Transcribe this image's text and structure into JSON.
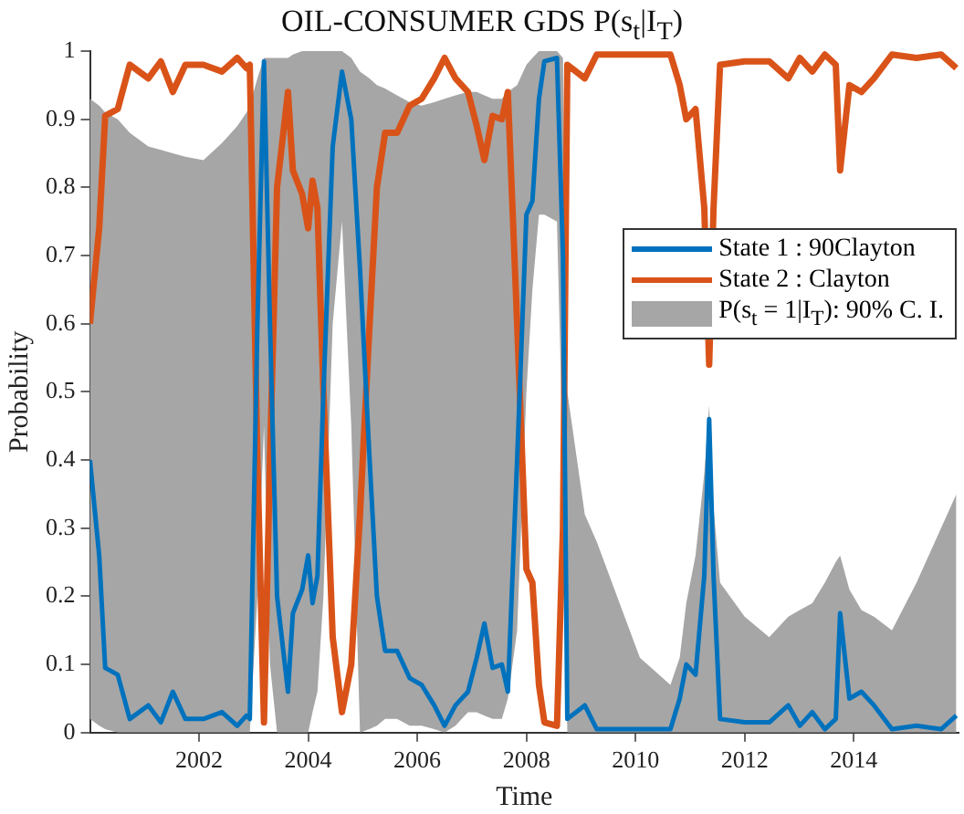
{
  "chart_data": {
    "type": "line",
    "title": "OIL-CONSUMER GDS P(s$_{t}$|I$_{T}$)",
    "xlabel": "Time",
    "ylabel": "Probability",
    "xlim": [
      2000,
      2015.92
    ],
    "xticks": [
      2002,
      2004,
      2006,
      2008,
      2010,
      2012,
      2014
    ],
    "ylim": [
      0,
      1
    ],
    "yticks": [
      0,
      0.1,
      0.2,
      0.3,
      0.4,
      0.5,
      0.6,
      0.7,
      0.8,
      0.9,
      1
    ],
    "grid": false,
    "legend": "right",
    "marker": "none",
    "line_style": "solid",
    "annotations": [
      "P(s$_{t}$ = 1|I$_{T}$): 90% C. I."
    ],
    "x": [
      2000.0,
      2000.17,
      2000.28,
      2000.51,
      2000.73,
      2001.07,
      2001.3,
      2001.52,
      2001.75,
      2002.08,
      2002.42,
      2002.7,
      2002.87,
      2002.93,
      2003.07,
      2003.19,
      2003.3,
      2003.43,
      2003.63,
      2003.72,
      2003.89,
      2004.0,
      2004.08,
      2004.17,
      2004.28,
      2004.45,
      2004.62,
      2004.79,
      2004.95,
      2005.12,
      2005.26,
      2005.41,
      2005.63,
      2005.86,
      2006.08,
      2006.31,
      2006.5,
      2006.7,
      2006.93,
      2007.09,
      2007.23,
      2007.38,
      2007.55,
      2007.66,
      2007.83,
      2008.0,
      2008.11,
      2008.23,
      2008.33,
      2008.56,
      2008.67,
      2008.75,
      2009.07,
      2009.29,
      2010.08,
      2010.64,
      2010.81,
      2010.93,
      2011.1,
      2011.26,
      2011.35,
      2011.43,
      2011.55,
      2012.0,
      2012.45,
      2012.8,
      2013.01,
      2013.24,
      2013.47,
      2013.67,
      2013.75,
      2013.92,
      2014.14,
      2014.37,
      2014.7,
      2015.15,
      2015.6,
      2015.88
    ],
    "series": [
      {
        "name": "State 1 : 90Clayton",
        "color": "#0072bd",
        "values": [
          0.4,
          0.26,
          0.095,
          0.085,
          0.02,
          0.04,
          0.015,
          0.06,
          0.02,
          0.02,
          0.03,
          0.01,
          0.025,
          0.02,
          0.6,
          0.985,
          0.6,
          0.2,
          0.06,
          0.175,
          0.21,
          0.26,
          0.19,
          0.23,
          0.5,
          0.86,
          0.97,
          0.9,
          0.68,
          0.41,
          0.2,
          0.12,
          0.12,
          0.08,
          0.07,
          0.04,
          0.01,
          0.04,
          0.06,
          0.11,
          0.16,
          0.095,
          0.1,
          0.06,
          0.4,
          0.76,
          0.78,
          0.93,
          0.985,
          0.99,
          0.7,
          0.02,
          0.04,
          0.005,
          0.005,
          0.005,
          0.05,
          0.1,
          0.085,
          0.23,
          0.46,
          0.23,
          0.02,
          0.015,
          0.015,
          0.04,
          0.01,
          0.03,
          0.005,
          0.02,
          0.175,
          0.05,
          0.06,
          0.04,
          0.005,
          0.01,
          0.005,
          0.025
        ],
        "upper": [
          0.93,
          0.92,
          0.91,
          0.9,
          0.88,
          0.86,
          0.855,
          0.85,
          0.845,
          0.84,
          0.865,
          0.89,
          0.91,
          0.92,
          0.96,
          0.99,
          0.99,
          0.99,
          0.99,
          0.995,
          1.0,
          1.0,
          1.0,
          1.0,
          1.0,
          1.0,
          1.0,
          0.99,
          0.97,
          0.96,
          0.95,
          0.945,
          0.935,
          0.925,
          0.92,
          0.925,
          0.93,
          0.935,
          0.94,
          0.94,
          0.935,
          0.93,
          0.93,
          0.94,
          0.95,
          0.98,
          0.99,
          1.0,
          1.0,
          1.0,
          0.99,
          0.5,
          0.32,
          0.28,
          0.11,
          0.07,
          0.11,
          0.19,
          0.26,
          0.38,
          0.48,
          0.33,
          0.22,
          0.17,
          0.14,
          0.17,
          0.18,
          0.19,
          0.22,
          0.25,
          0.26,
          0.21,
          0.18,
          0.17,
          0.15,
          0.22,
          0.3,
          0.35
        ],
        "lower": [
          0.02,
          0.01,
          0.005,
          0,
          0,
          0,
          0,
          0,
          0,
          0,
          0,
          0,
          0,
          0,
          0.2,
          0.45,
          0.1,
          0,
          0,
          0,
          0,
          0,
          0.03,
          0.06,
          0.2,
          0.6,
          0.75,
          0.45,
          0,
          0.005,
          0.01,
          0.02,
          0.02,
          0.01,
          0.01,
          0.005,
          0,
          0.01,
          0.03,
          0.03,
          0.025,
          0.02,
          0.02,
          0.05,
          0.15,
          0.5,
          0.65,
          0.76,
          0.76,
          0.75,
          0.4,
          0,
          0,
          0,
          0,
          0,
          0,
          0,
          0,
          0,
          0,
          0,
          0,
          0,
          0,
          0,
          0,
          0,
          0,
          0,
          0,
          0,
          0,
          0,
          0,
          0,
          0,
          0
        ]
      },
      {
        "name": "State 2 : Clayton",
        "color": "#d95319",
        "values": [
          0.6,
          0.74,
          0.905,
          0.915,
          0.98,
          0.96,
          0.985,
          0.94,
          0.98,
          0.98,
          0.97,
          0.99,
          0.975,
          0.98,
          0.4,
          0.015,
          0.4,
          0.8,
          0.94,
          0.825,
          0.79,
          0.74,
          0.81,
          0.77,
          0.5,
          0.14,
          0.03,
          0.1,
          0.32,
          0.59,
          0.8,
          0.88,
          0.88,
          0.92,
          0.93,
          0.96,
          0.99,
          0.96,
          0.94,
          0.89,
          0.84,
          0.905,
          0.9,
          0.94,
          0.6,
          0.24,
          0.22,
          0.07,
          0.015,
          0.01,
          0.3,
          0.98,
          0.96,
          0.995,
          0.995,
          0.995,
          0.95,
          0.9,
          0.915,
          0.77,
          0.54,
          0.77,
          0.98,
          0.985,
          0.985,
          0.96,
          0.99,
          0.97,
          0.995,
          0.98,
          0.825,
          0.95,
          0.94,
          0.96,
          0.995,
          0.99,
          0.995,
          0.975
        ]
      }
    ]
  }
}
